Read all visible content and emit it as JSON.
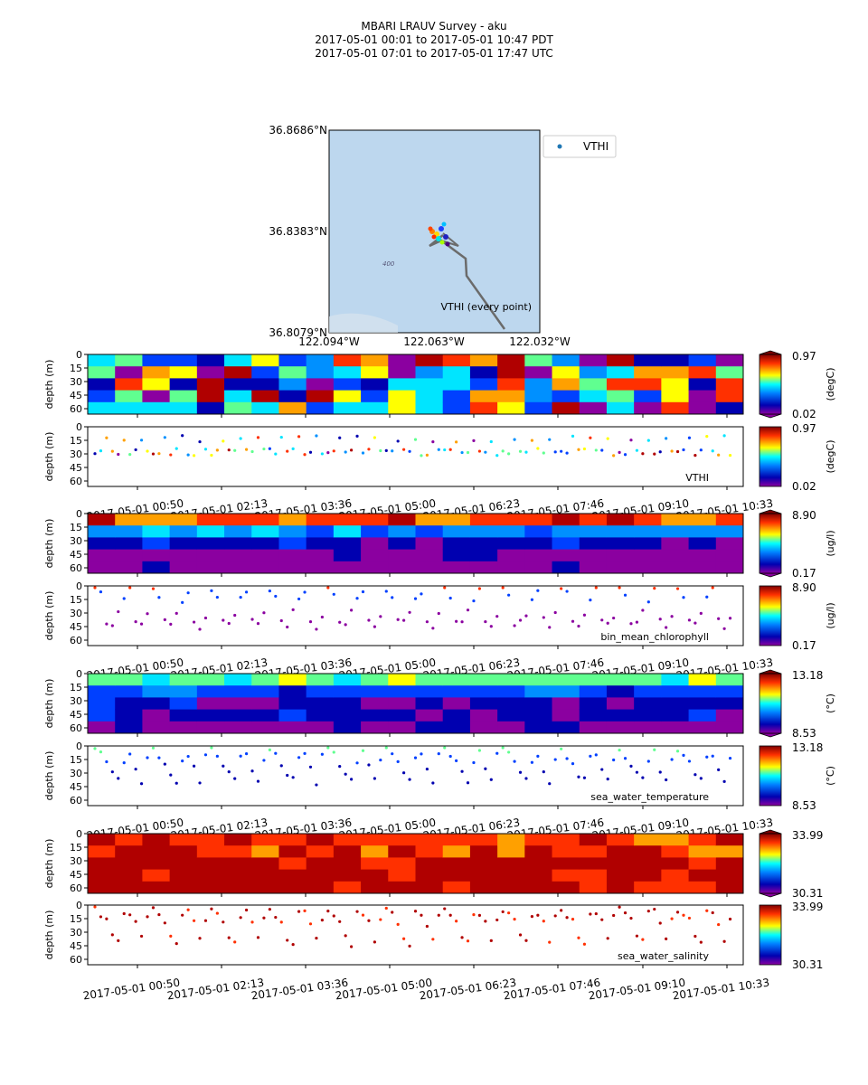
{
  "title": {
    "line1": "MBARI LRAUV Survey - aku",
    "line2": "2017-05-01 00:01  to  2017-05-01 10:47 PDT",
    "line3": "2017-05-01 07:01  to  2017-05-01 17:47 UTC"
  },
  "map": {
    "lat_ticks": [
      "36.8686°N",
      "36.8383°N",
      "36.8079°N"
    ],
    "lon_ticks": [
      "122.094°W",
      "122.063°W",
      "122.032°W"
    ],
    "legend_label": "VTHI",
    "annotation": "VTHI (every point)",
    "contour_label": "400",
    "background_color": "#bdd7ee",
    "track_color": "#6b6b6b"
  },
  "time_ticks": [
    "2017-05-01 00:50",
    "2017-05-01 02:13",
    "2017-05-01 03:36",
    "2017-05-01 05:00",
    "2017-05-01 06:23",
    "2017-05-01 07:46",
    "2017-05-01 09:10",
    "2017-05-01 10:33"
  ],
  "depth_label": "depth (m)",
  "depth_ticks": [
    "0",
    "15",
    "30",
    "45",
    "60"
  ],
  "chart_data": [
    {
      "type": "heatmap",
      "variable": "VTHI",
      "units": "(degC)",
      "colorbar_range": [
        0.02,
        0.97
      ],
      "ylabel": "depth (m)",
      "yrange": [
        0,
        66
      ]
    },
    {
      "type": "scatter",
      "variable": "VTHI",
      "label": "VTHI",
      "units": "(degC)",
      "colorbar_range": [
        0.02,
        0.97
      ],
      "ylabel": "depth (m)",
      "sample_depths": [
        28,
        28,
        13,
        28,
        28,
        13,
        28,
        28,
        13,
        28
      ]
    },
    {
      "type": "heatmap",
      "variable": "bin_mean_chlorophyll",
      "units": "(ug/l)",
      "colorbar_range": [
        0.17,
        8.9
      ],
      "ylabel": "depth (m)",
      "yrange": [
        0,
        66
      ]
    },
    {
      "type": "scatter",
      "variable": "bin_mean_chlorophyll",
      "label": "bin_mean_chlorophyll",
      "units": "(ug/l)",
      "colorbar_range": [
        0.17,
        8.9
      ],
      "ylabel": "depth (m)",
      "sample_depths": [
        2,
        10,
        40,
        42,
        30,
        15,
        5,
        38,
        44,
        32
      ]
    },
    {
      "type": "heatmap",
      "variable": "sea_water_temperature",
      "units": "(°C)",
      "colorbar_range": [
        8.53,
        13.18
      ],
      "ylabel": "depth (m)",
      "yrange": [
        0,
        66
      ]
    },
    {
      "type": "scatter",
      "variable": "sea_water_temperature",
      "label": "sea_water_temperature",
      "units": "(°C)",
      "colorbar_range": [
        8.53,
        13.18
      ],
      "ylabel": "depth (m)",
      "sample_depths": [
        2,
        10,
        20,
        32,
        38,
        15,
        8,
        25,
        40,
        12
      ]
    },
    {
      "type": "heatmap",
      "variable": "sea_water_salinity",
      "units": "",
      "colorbar_range": [
        30.31,
        33.99
      ],
      "ylabel": "depth (m)",
      "yrange": [
        0,
        66
      ]
    },
    {
      "type": "scatter",
      "variable": "sea_water_salinity",
      "label": "sea_water_salinity",
      "units": "",
      "colorbar_range": [
        30.31,
        33.99
      ],
      "ylabel": "depth (m)",
      "sample_depths": [
        5,
        12,
        18,
        35,
        42,
        10,
        8,
        20,
        38,
        15
      ]
    }
  ]
}
